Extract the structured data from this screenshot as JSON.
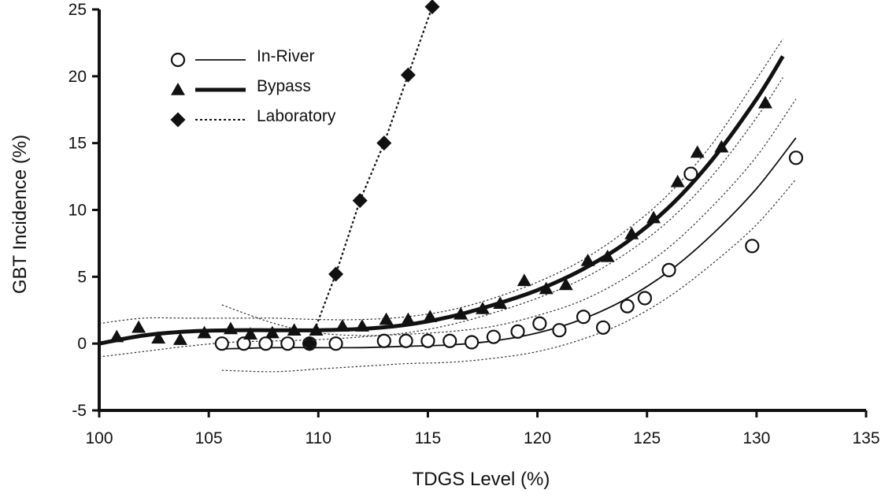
{
  "chart_data": {
    "type": "scatter",
    "title": "",
    "xlabel": "TDGS Level (%)",
    "ylabel": "GBT Incidence (%)",
    "xlim": [
      100,
      135
    ],
    "ylim": [
      -5,
      25
    ],
    "xticks": [
      100,
      105,
      110,
      115,
      120,
      125,
      130,
      135
    ],
    "yticks": [
      -5,
      0,
      5,
      10,
      15,
      20,
      25
    ],
    "legend_position": "top-left",
    "grid": false,
    "series": [
      {
        "name": "In-River",
        "marker": "open-circle",
        "line": "thin-solid",
        "color": "#111111",
        "points": [
          [
            105.6,
            0.0
          ],
          [
            106.6,
            0.0
          ],
          [
            107.6,
            0.0
          ],
          [
            108.6,
            0.0
          ],
          [
            109.6,
            0.0
          ],
          [
            110.8,
            0.0
          ],
          [
            113.0,
            0.2
          ],
          [
            114.0,
            0.2
          ],
          [
            115.0,
            0.2
          ],
          [
            116.0,
            0.2
          ],
          [
            117.0,
            0.1
          ],
          [
            118.0,
            0.5
          ],
          [
            119.1,
            0.9
          ],
          [
            120.1,
            1.5
          ],
          [
            121.0,
            1.0
          ],
          [
            122.1,
            2.0
          ],
          [
            123.0,
            1.2
          ],
          [
            124.1,
            2.8
          ],
          [
            124.9,
            3.4
          ],
          [
            126.0,
            5.5
          ],
          [
            127.0,
            12.7
          ],
          [
            129.8,
            7.3
          ],
          [
            131.8,
            13.9
          ]
        ],
        "fit": [
          [
            105.6,
            -0.4
          ],
          [
            108,
            -0.3
          ],
          [
            110,
            -0.3
          ],
          [
            112,
            -0.3
          ],
          [
            114,
            -0.2
          ],
          [
            116,
            -0.1
          ],
          [
            118,
            0.2
          ],
          [
            120,
            0.8
          ],
          [
            122,
            1.8
          ],
          [
            124,
            3.3
          ],
          [
            126,
            5.4
          ],
          [
            128,
            8.2
          ],
          [
            130,
            11.6
          ],
          [
            131.8,
            15.4
          ]
        ],
        "ci_upper": [
          [
            105.6,
            2.9
          ],
          [
            108,
            1.5
          ],
          [
            110,
            0.8
          ],
          [
            112,
            0.6
          ],
          [
            114,
            0.7
          ],
          [
            116,
            0.9
          ],
          [
            118,
            1.3
          ],
          [
            120,
            2.1
          ],
          [
            122,
            3.2
          ],
          [
            124,
            4.9
          ],
          [
            126,
            7.2
          ],
          [
            128,
            10.3
          ],
          [
            130,
            14.0
          ],
          [
            131.8,
            18.3
          ]
        ],
        "ci_lower": [
          [
            105.6,
            -2.0
          ],
          [
            108,
            -2.1
          ],
          [
            110,
            -1.9
          ],
          [
            112,
            -1.7
          ],
          [
            114,
            -1.5
          ],
          [
            116,
            -1.4
          ],
          [
            118,
            -1.1
          ],
          [
            120,
            -0.6
          ],
          [
            122,
            0.3
          ],
          [
            124,
            1.6
          ],
          [
            126,
            3.5
          ],
          [
            128,
            6.0
          ],
          [
            130,
            8.9
          ],
          [
            131.8,
            12.3
          ]
        ]
      },
      {
        "name": "Bypass",
        "marker": "filled-triangle",
        "line": "thick-solid",
        "color": "#111111",
        "points": [
          [
            100.8,
            0.5
          ],
          [
            101.8,
            1.2
          ],
          [
            102.7,
            0.4
          ],
          [
            103.7,
            0.3
          ],
          [
            104.8,
            0.8
          ],
          [
            106.0,
            1.1
          ],
          [
            106.9,
            0.7
          ],
          [
            107.9,
            0.8
          ],
          [
            108.9,
            1.0
          ],
          [
            109.9,
            1.0
          ],
          [
            111.1,
            1.3
          ],
          [
            112.0,
            1.3
          ],
          [
            113.1,
            1.8
          ],
          [
            114.1,
            1.8
          ],
          [
            115.1,
            2.0
          ],
          [
            116.5,
            2.2
          ],
          [
            117.5,
            2.6
          ],
          [
            118.3,
            3.0
          ],
          [
            119.4,
            4.7
          ],
          [
            120.4,
            4.1
          ],
          [
            121.3,
            4.4
          ],
          [
            122.3,
            6.2
          ],
          [
            123.2,
            6.5
          ],
          [
            124.3,
            8.2
          ],
          [
            125.3,
            9.4
          ],
          [
            126.4,
            12.1
          ],
          [
            127.3,
            14.3
          ],
          [
            128.4,
            14.7
          ],
          [
            130.4,
            18.0
          ]
        ],
        "fit": [
          [
            100,
            0.0
          ],
          [
            102,
            0.6
          ],
          [
            104,
            0.9
          ],
          [
            106,
            1.0
          ],
          [
            108,
            1.0
          ],
          [
            110,
            1.0
          ],
          [
            112,
            1.1
          ],
          [
            114,
            1.4
          ],
          [
            116,
            2.0
          ],
          [
            118,
            2.9
          ],
          [
            120,
            4.0
          ],
          [
            122,
            5.5
          ],
          [
            124,
            7.5
          ],
          [
            126,
            10.2
          ],
          [
            128,
            13.8
          ],
          [
            130,
            18.3
          ],
          [
            131.2,
            21.5
          ]
        ],
        "ci_upper": [
          [
            100,
            1.5
          ],
          [
            102,
            1.9
          ],
          [
            104,
            1.9
          ],
          [
            106,
            1.9
          ],
          [
            108,
            1.9
          ],
          [
            110,
            1.8
          ],
          [
            112,
            1.8
          ],
          [
            114,
            2.0
          ],
          [
            116,
            2.5
          ],
          [
            118,
            3.4
          ],
          [
            120,
            4.6
          ],
          [
            122,
            6.2
          ],
          [
            124,
            8.4
          ],
          [
            126,
            11.2
          ],
          [
            128,
            15.0
          ],
          [
            130,
            19.8
          ],
          [
            131.2,
            22.8
          ]
        ],
        "ci_lower": [
          [
            100,
            -1.0
          ],
          [
            102,
            -0.6
          ],
          [
            104,
            -0.2
          ],
          [
            106,
            0.1
          ],
          [
            108,
            0.2
          ],
          [
            110,
            0.3
          ],
          [
            112,
            0.5
          ],
          [
            114,
            0.8
          ],
          [
            116,
            1.4
          ],
          [
            118,
            2.3
          ],
          [
            120,
            3.4
          ],
          [
            122,
            4.8
          ],
          [
            124,
            6.7
          ],
          [
            126,
            9.2
          ],
          [
            128,
            12.6
          ],
          [
            130,
            16.9
          ],
          [
            131.2,
            19.9
          ]
        ]
      },
      {
        "name": "Laboratory",
        "marker": "filled-diamond",
        "line": "dotted",
        "color": "#111111",
        "points": [
          [
            109.6,
            0.0
          ],
          [
            110.8,
            5.2
          ],
          [
            111.9,
            10.7
          ],
          [
            113.0,
            15.0
          ],
          [
            114.1,
            20.1
          ],
          [
            115.2,
            25.2
          ]
        ]
      }
    ]
  }
}
